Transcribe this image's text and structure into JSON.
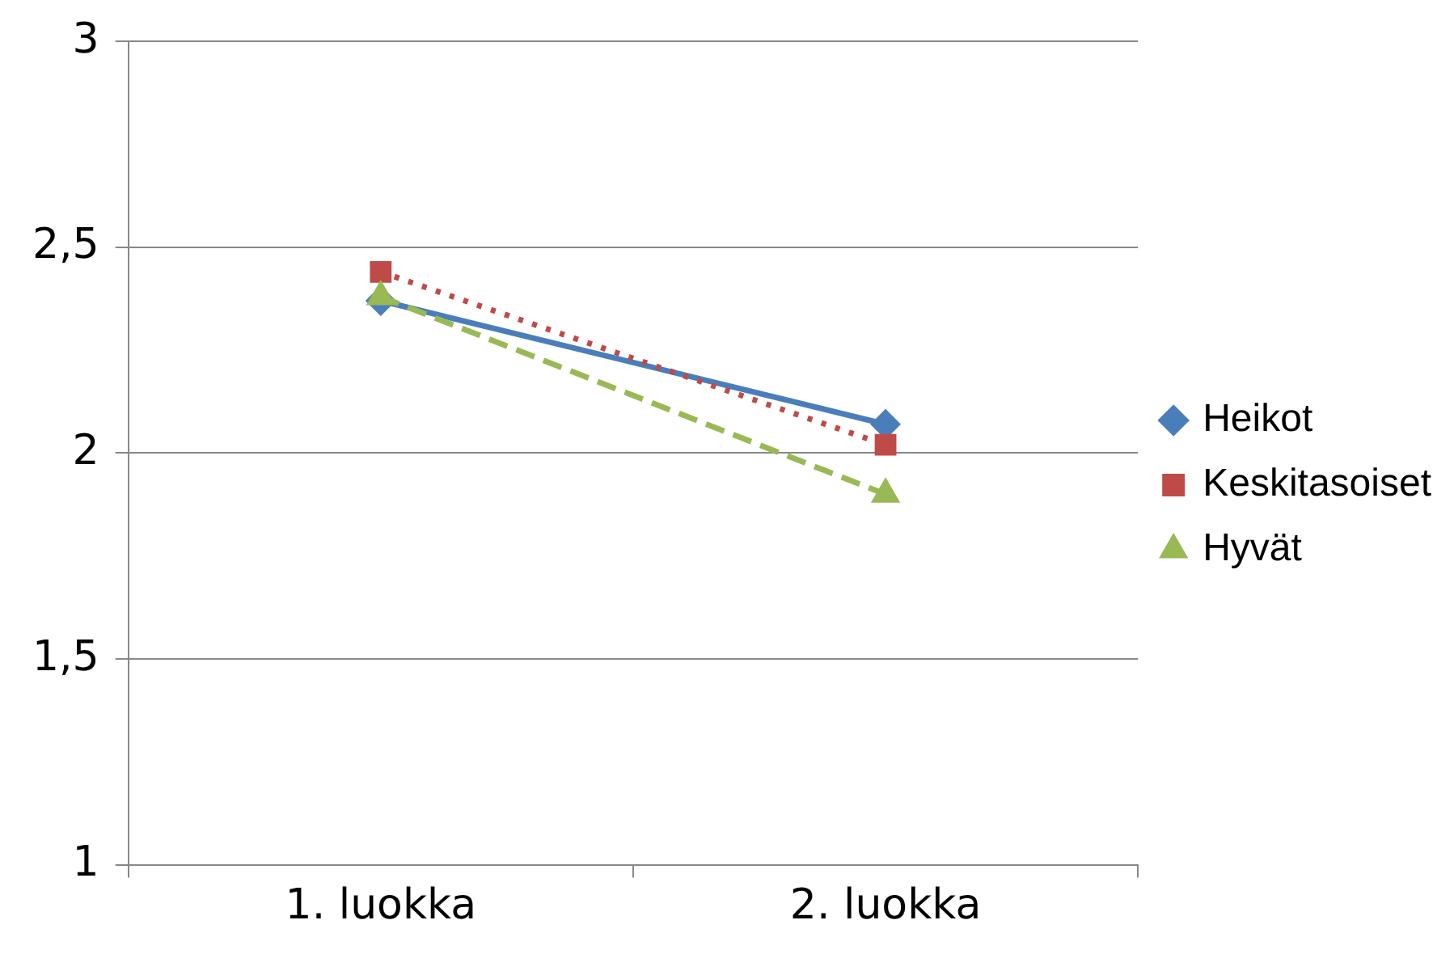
{
  "chart_data": {
    "type": "line",
    "categories": [
      "1. luokka",
      "2. luokka"
    ],
    "series": [
      {
        "name": "Heikot",
        "color": "#4a7ebb",
        "values": [
          2.37,
          2.07
        ],
        "marker": "diamond",
        "line_style": "solid"
      },
      {
        "name": "Keskitasoiset",
        "color": "#be4b48",
        "values": [
          2.44,
          2.02
        ],
        "marker": "square",
        "line_style": "dotted"
      },
      {
        "name": "Hyvät",
        "color": "#98b954",
        "values": [
          2.38,
          1.9
        ],
        "marker": "triangle",
        "line_style": "dashed"
      }
    ],
    "ylim": [
      1,
      3
    ],
    "yticks": [
      1,
      {
        "value": 1.5,
        "label": "1,5"
      },
      2,
      {
        "value": 2.5,
        "label": "2,5"
      },
      3
    ],
    "grid": "y",
    "legend": "right"
  }
}
